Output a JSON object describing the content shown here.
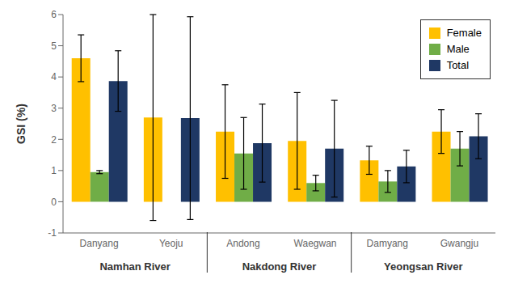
{
  "chart_data": {
    "type": "bar",
    "categories": [
      "Danyang",
      "Yeoju",
      "Andong",
      "Waegwan",
      "Damyang",
      "Gwangju"
    ],
    "groups": [
      {
        "name": "Namhan River",
        "categories": [
          "Danyang",
          "Yeoju"
        ]
      },
      {
        "name": "Nakdong River",
        "categories": [
          "Andong",
          "Waegwan"
        ]
      },
      {
        "name": "Yeongsan River",
        "categories": [
          "Damyang",
          "Gwangju"
        ]
      }
    ],
    "series": [
      {
        "name": "Female",
        "color": "#FFC000",
        "values": [
          4.6,
          2.7,
          2.25,
          1.95,
          1.33,
          2.25
        ],
        "errors": [
          0.75,
          3.3,
          1.5,
          1.55,
          0.45,
          0.7
        ]
      },
      {
        "name": "Male",
        "color": "#70AD47",
        "values": [
          0.95,
          0.0,
          1.55,
          0.6,
          0.65,
          1.7
        ],
        "errors": [
          0.05,
          0.0,
          1.15,
          0.25,
          0.35,
          0.55
        ]
      },
      {
        "name": "Total",
        "color": "#1F3864",
        "values": [
          3.87,
          2.68,
          1.88,
          1.7,
          1.13,
          2.1
        ],
        "errors": [
          0.97,
          3.25,
          1.25,
          1.55,
          0.52,
          0.72
        ]
      }
    ],
    "ylabel": "GSI (%)",
    "ylim": [
      -1,
      6
    ],
    "yticks": [
      -1,
      0,
      1,
      2,
      3,
      4,
      5,
      6
    ],
    "legend": "upper right",
    "grid": false
  }
}
